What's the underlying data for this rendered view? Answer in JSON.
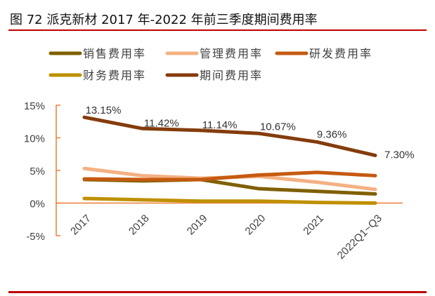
{
  "header": {
    "title": "图 72 派克新材 2017 年-2022 年前三季度期间费用率"
  },
  "chart_data": {
    "type": "line",
    "title": "图 72 派克新材 2017 年-2022 年前三季度期间费用率",
    "xlabel": "",
    "ylabel": "",
    "categories": [
      "2017",
      "2018",
      "2019",
      "2020",
      "2021",
      "2022Q1~Q3"
    ],
    "ylim": [
      -5,
      15
    ],
    "yticks": [
      15,
      10,
      5,
      0,
      -5
    ],
    "ytick_labels": [
      "15%",
      "10%",
      "5%",
      "0%",
      "-5%"
    ],
    "grid": false,
    "legend_position": "top",
    "series": [
      {
        "name": "销售费用率",
        "color": "#7f6000",
        "values": [
          3.6,
          3.4,
          3.6,
          2.2,
          1.8,
          1.4
        ]
      },
      {
        "name": "管理费用率",
        "color": "#f4b183",
        "values": [
          5.3,
          4.2,
          3.8,
          4.1,
          3.2,
          2.1
        ]
      },
      {
        "name": "研发费用率",
        "color": "#c55a11",
        "values": [
          3.7,
          3.6,
          3.6,
          4.3,
          4.7,
          4.2
        ]
      },
      {
        "name": "财务费用率",
        "color": "#bf9000",
        "values": [
          0.7,
          0.5,
          0.3,
          0.3,
          0.1,
          0.0
        ]
      },
      {
        "name": "期间费用率",
        "color": "#843c0c",
        "values": [
          13.15,
          11.42,
          11.14,
          10.67,
          9.36,
          7.3
        ],
        "data_labels": [
          "13.15%",
          "11.42%",
          "11.14%",
          "10.67%",
          "9.36%",
          "7.30%"
        ]
      }
    ],
    "axis_color": "#ed7d31"
  }
}
